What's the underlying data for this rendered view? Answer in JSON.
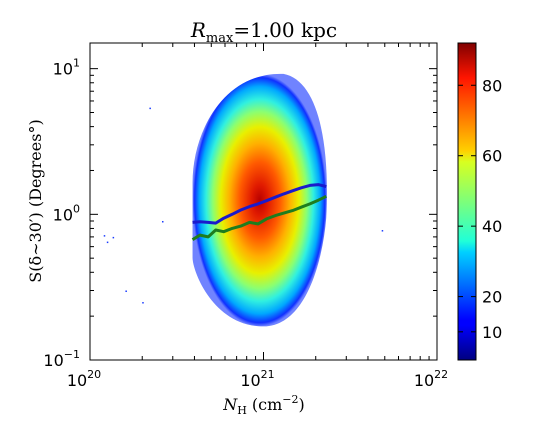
{
  "chart_data": {
    "type": "heatmap",
    "title": "R_max = 1.00 kpc",
    "title_parts": {
      "base": "R",
      "sub": "max",
      "rest": "=1.00 kpc"
    },
    "xlabel": "N_H (cm^-2)",
    "xlabel_parts": {
      "base": "N",
      "sub": "H",
      "rest": " (cm",
      "sup": "−2",
      "end": ")"
    },
    "ylabel": "S(δ∼30′) (Degrees°)",
    "x_scale": "log",
    "y_scale": "log",
    "xlim": [
      1e+20,
      1e+22
    ],
    "ylim": [
      0.1,
      15
    ],
    "x_ticks": [
      {
        "value": 1e+20,
        "base": "10",
        "exp": "20"
      },
      {
        "value": 1e+21,
        "base": "10",
        "exp": "21"
      },
      {
        "value": 1e+22,
        "base": "10",
        "exp": "22"
      }
    ],
    "y_ticks": [
      {
        "value": 0.1,
        "base": "10",
        "exp": "−1"
      },
      {
        "value": 1,
        "base": "10",
        "exp": "0"
      },
      {
        "value": 10,
        "base": "10",
        "exp": "1"
      }
    ],
    "colorbar": {
      "colormap": "jet",
      "range": [
        2,
        92
      ],
      "ticks": [
        {
          "value": 10,
          "label": "10"
        },
        {
          "value": 20,
          "label": "20"
        },
        {
          "value": 40,
          "label": "40"
        },
        {
          "value": 60,
          "label": "60"
        },
        {
          "value": 80,
          "label": "80"
        }
      ]
    },
    "density": {
      "peak_x": 1e+21,
      "peak_y": 0.95,
      "x_range": [
        3.9e+20,
        2.3e+21
      ],
      "y_range": [
        0.17,
        9.5
      ]
    },
    "series": [
      {
        "color": "#1a1acc",
        "x": [
          3.9e+20,
          4.3e+20,
          4.8e+20,
          5.3e+20,
          5.9e+20,
          6.6e+20,
          7.4e+20,
          8.3e+20,
          9.3e+20,
          1.04e+21,
          1.17e+21,
          1.31e+21,
          1.47e+21,
          1.65e+21,
          1.85e+21,
          2.07e+21,
          2.3e+21
        ],
        "values": [
          0.88,
          0.89,
          0.88,
          0.87,
          0.94,
          1.0,
          1.07,
          1.13,
          1.18,
          1.24,
          1.31,
          1.38,
          1.45,
          1.52,
          1.58,
          1.6,
          1.55
        ]
      },
      {
        "color": "#1e7d1e",
        "x": [
          3.9e+20,
          4.3e+20,
          4.8e+20,
          5.3e+20,
          5.9e+20,
          6.6e+20,
          7.4e+20,
          8.3e+20,
          9.3e+20,
          1.04e+21,
          1.17e+21,
          1.31e+21,
          1.47e+21,
          1.65e+21,
          1.85e+21,
          2.07e+21,
          2.3e+21
        ],
        "values": [
          0.67,
          0.72,
          0.7,
          0.78,
          0.76,
          0.8,
          0.83,
          0.88,
          0.86,
          0.93,
          0.98,
          1.02,
          1.06,
          1.12,
          1.18,
          1.25,
          1.33
        ]
      }
    ]
  }
}
